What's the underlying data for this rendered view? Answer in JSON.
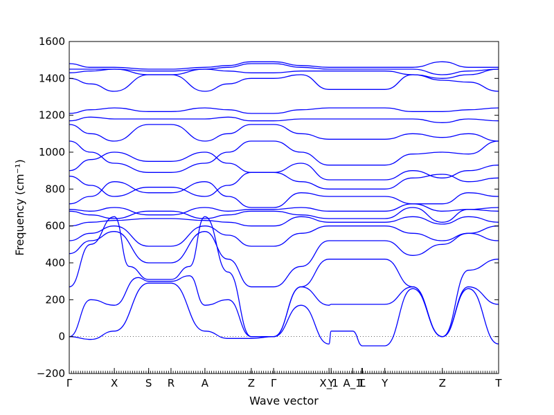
{
  "chart_data": {
    "type": "line",
    "title": "",
    "xlabel": "Wave vector",
    "ylabel": "Frequency (cm⁻¹)",
    "ylim": [
      -200,
      1600
    ],
    "yticks": [
      -200,
      0,
      200,
      400,
      600,
      800,
      1000,
      1200,
      1400,
      1600
    ],
    "xlim": [
      0,
      1
    ],
    "grid": false,
    "legend": "none",
    "series_color": "#0000ff",
    "zero_line": true,
    "kpoints": [
      {
        "label": "Γ",
        "x": 0.0
      },
      {
        "label": "X",
        "x": 0.105
      },
      {
        "label": "S",
        "x": 0.185
      },
      {
        "label": "R",
        "x": 0.237
      },
      {
        "label": "A",
        "x": 0.316
      },
      {
        "label": "Z",
        "x": 0.424
      },
      {
        "label": "Γ",
        "x": 0.476
      },
      {
        "label": "X_1",
        "x": 0.605
      },
      {
        "label": "Y",
        "x": 0.61
      },
      {
        "label": "A_1",
        "x": 0.66
      },
      {
        "label": "T",
        "x": 0.681
      },
      {
        "label": "L",
        "x": 0.683
      },
      {
        "label": "Y",
        "x": 0.735
      },
      {
        "label": "Z",
        "x": 0.869
      },
      {
        "label": "T",
        "x": 1.0
      }
    ],
    "series": [
      {
        "x": [
          0,
          0.05,
          0.105,
          0.185,
          0.237,
          0.316,
          0.37,
          0.424,
          0.476,
          0.54,
          0.605,
          0.61,
          0.66,
          0.683,
          0.735,
          0.8,
          0.869,
          0.93,
          1.0
        ],
        "y": [
          0,
          -15,
          30,
          290,
          290,
          30,
          -10,
          -10,
          0,
          170,
          -40,
          30,
          30,
          -50,
          -50,
          260,
          0,
          260,
          -40
        ]
      },
      {
        "x": [
          0,
          0.05,
          0.105,
          0.16,
          0.185,
          0.237,
          0.28,
          0.316,
          0.37,
          0.424,
          0.476,
          0.54,
          0.605,
          0.61,
          0.66,
          0.683,
          0.735,
          0.8,
          0.869,
          0.93,
          1.0
        ],
        "y": [
          0,
          200,
          170,
          320,
          300,
          300,
          330,
          170,
          200,
          0,
          0,
          270,
          170,
          175,
          175,
          175,
          175,
          270,
          0,
          270,
          175
        ]
      },
      {
        "x": [
          0,
          0.05,
          0.105,
          0.14,
          0.185,
          0.237,
          0.28,
          0.316,
          0.37,
          0.424,
          0.476,
          0.54,
          0.605,
          0.61,
          0.66,
          0.683,
          0.735,
          0.8,
          0.869,
          0.93,
          1.0
        ],
        "y": [
          270,
          500,
          650,
          380,
          310,
          310,
          380,
          650,
          350,
          0,
          0,
          270,
          420,
          420,
          420,
          420,
          420,
          270,
          0,
          360,
          420
        ]
      },
      {
        "x": [
          0,
          0.05,
          0.105,
          0.185,
          0.237,
          0.316,
          0.37,
          0.424,
          0.476,
          0.54,
          0.605,
          0.61,
          0.66,
          0.683,
          0.735,
          0.8,
          0.869,
          0.93,
          1.0
        ],
        "y": [
          450,
          520,
          570,
          400,
          400,
          570,
          420,
          270,
          270,
          380,
          520,
          520,
          520,
          520,
          520,
          440,
          500,
          560,
          520
        ]
      },
      {
        "x": [
          0,
          0.05,
          0.105,
          0.185,
          0.237,
          0.316,
          0.37,
          0.424,
          0.476,
          0.54,
          0.605,
          0.61,
          0.66,
          0.683,
          0.735,
          0.8,
          0.869,
          0.93,
          1.0
        ],
        "y": [
          520,
          560,
          600,
          490,
          490,
          600,
          550,
          490,
          490,
          560,
          600,
          600,
          600,
          600,
          600,
          560,
          520,
          560,
          600
        ]
      },
      {
        "x": [
          0,
          0.05,
          0.105,
          0.185,
          0.237,
          0.316,
          0.37,
          0.424,
          0.476,
          0.54,
          0.605,
          0.61,
          0.66,
          0.683,
          0.735,
          0.8,
          0.869,
          0.93,
          1.0
        ],
        "y": [
          600,
          620,
          630,
          640,
          640,
          630,
          620,
          600,
          600,
          650,
          620,
          620,
          620,
          620,
          620,
          650,
          610,
          650,
          620
        ]
      },
      {
        "x": [
          0,
          0.05,
          0.105,
          0.185,
          0.237,
          0.316,
          0.37,
          0.424,
          0.476,
          0.54,
          0.605,
          0.61,
          0.66,
          0.683,
          0.735,
          0.8,
          0.869,
          0.93,
          1.0
        ],
        "y": [
          680,
          660,
          640,
          680,
          680,
          640,
          660,
          680,
          680,
          660,
          640,
          640,
          640,
          640,
          640,
          700,
          620,
          690,
          680
        ]
      },
      {
        "x": [
          0,
          0.05,
          0.105,
          0.185,
          0.237,
          0.316,
          0.37,
          0.424,
          0.476,
          0.54,
          0.605,
          0.61,
          0.66,
          0.683,
          0.735,
          0.8,
          0.869,
          0.93,
          1.0
        ],
        "y": [
          690,
          680,
          700,
          660,
          660,
          700,
          680,
          690,
          690,
          700,
          680,
          680,
          680,
          680,
          680,
          720,
          680,
          690,
          700
        ]
      },
      {
        "x": [
          0,
          0.05,
          0.105,
          0.185,
          0.237,
          0.316,
          0.37,
          0.424,
          0.476,
          0.54,
          0.605,
          0.61,
          0.66,
          0.683,
          0.735,
          0.8,
          0.869,
          0.93,
          1.0
        ],
        "y": [
          720,
          760,
          840,
          780,
          780,
          840,
          760,
          700,
          700,
          780,
          760,
          760,
          760,
          760,
          760,
          720,
          720,
          780,
          760
        ]
      },
      {
        "x": [
          0,
          0.05,
          0.105,
          0.185,
          0.237,
          0.316,
          0.37,
          0.424,
          0.476,
          0.54,
          0.605,
          0.61,
          0.66,
          0.683,
          0.735,
          0.8,
          0.869,
          0.93,
          1.0
        ],
        "y": [
          870,
          820,
          760,
          810,
          810,
          760,
          820,
          890,
          890,
          840,
          800,
          800,
          800,
          800,
          800,
          860,
          880,
          840,
          860
        ]
      },
      {
        "x": [
          0,
          0.05,
          0.105,
          0.185,
          0.237,
          0.316,
          0.37,
          0.424,
          0.476,
          0.54,
          0.605,
          0.61,
          0.66,
          0.683,
          0.735,
          0.8,
          0.869,
          0.93,
          1.0
        ],
        "y": [
          900,
          960,
          1000,
          950,
          950,
          1000,
          940,
          890,
          890,
          940,
          850,
          850,
          850,
          850,
          850,
          900,
          860,
          900,
          930
        ]
      },
      {
        "x": [
          0,
          0.05,
          0.105,
          0.185,
          0.237,
          0.316,
          0.37,
          0.424,
          0.476,
          0.54,
          0.605,
          0.61,
          0.66,
          0.683,
          0.735,
          0.8,
          0.869,
          0.93,
          1.0
        ],
        "y": [
          1060,
          1000,
          940,
          890,
          890,
          940,
          1000,
          1060,
          1060,
          1000,
          930,
          930,
          930,
          930,
          930,
          990,
          1000,
          990,
          1060
        ]
      },
      {
        "x": [
          0,
          0.05,
          0.105,
          0.185,
          0.237,
          0.316,
          0.37,
          0.424,
          0.476,
          0.54,
          0.605,
          0.61,
          0.66,
          0.683,
          0.735,
          0.8,
          0.869,
          0.93,
          1.0
        ],
        "y": [
          1150,
          1100,
          1060,
          1150,
          1150,
          1060,
          1100,
          1150,
          1150,
          1100,
          1070,
          1070,
          1070,
          1070,
          1070,
          1100,
          1080,
          1100,
          1060
        ]
      },
      {
        "x": [
          0,
          0.05,
          0.105,
          0.185,
          0.237,
          0.316,
          0.37,
          0.424,
          0.476,
          0.54,
          0.605,
          0.61,
          0.66,
          0.683,
          0.735,
          0.8,
          0.869,
          0.93,
          1.0
        ],
        "y": [
          1170,
          1190,
          1180,
          1180,
          1180,
          1180,
          1190,
          1170,
          1170,
          1180,
          1180,
          1180,
          1180,
          1180,
          1180,
          1180,
          1160,
          1180,
          1170
        ]
      },
      {
        "x": [
          0,
          0.05,
          0.105,
          0.185,
          0.237,
          0.316,
          0.37,
          0.424,
          0.476,
          0.54,
          0.605,
          0.61,
          0.66,
          0.683,
          0.735,
          0.8,
          0.869,
          0.93,
          1.0
        ],
        "y": [
          1210,
          1230,
          1240,
          1220,
          1220,
          1240,
          1230,
          1210,
          1210,
          1230,
          1240,
          1240,
          1240,
          1240,
          1240,
          1220,
          1220,
          1230,
          1240
        ]
      },
      {
        "x": [
          0,
          0.05,
          0.105,
          0.185,
          0.237,
          0.316,
          0.37,
          0.424,
          0.476,
          0.54,
          0.605,
          0.61,
          0.66,
          0.683,
          0.735,
          0.8,
          0.869,
          0.93,
          1.0
        ],
        "y": [
          1400,
          1370,
          1330,
          1420,
          1420,
          1330,
          1370,
          1400,
          1400,
          1420,
          1340,
          1340,
          1340,
          1340,
          1340,
          1420,
          1390,
          1380,
          1330
        ]
      },
      {
        "x": [
          0,
          0.05,
          0.105,
          0.185,
          0.237,
          0.316,
          0.37,
          0.424,
          0.476,
          0.54,
          0.605,
          0.61,
          0.66,
          0.683,
          0.735,
          0.8,
          0.869,
          0.93,
          1.0
        ],
        "y": [
          1430,
          1440,
          1450,
          1420,
          1420,
          1450,
          1440,
          1430,
          1430,
          1440,
          1440,
          1440,
          1440,
          1440,
          1440,
          1420,
          1400,
          1420,
          1450
        ]
      },
      {
        "x": [
          0,
          0.05,
          0.105,
          0.185,
          0.237,
          0.316,
          0.37,
          0.424,
          0.476,
          0.54,
          0.605,
          0.61,
          0.66,
          0.683,
          0.735,
          0.8,
          0.869,
          0.93,
          1.0
        ],
        "y": [
          1450,
          1450,
          1450,
          1440,
          1440,
          1450,
          1460,
          1480,
          1480,
          1460,
          1450,
          1450,
          1450,
          1450,
          1450,
          1450,
          1420,
          1440,
          1450
        ]
      },
      {
        "x": [
          0,
          0.05,
          0.105,
          0.185,
          0.237,
          0.316,
          0.37,
          0.424,
          0.476,
          0.54,
          0.605,
          0.61,
          0.66,
          0.683,
          0.735,
          0.8,
          0.869,
          0.93,
          1.0
        ],
        "y": [
          1480,
          1460,
          1460,
          1450,
          1450,
          1460,
          1470,
          1490,
          1490,
          1470,
          1460,
          1460,
          1460,
          1460,
          1460,
          1460,
          1490,
          1460,
          1460
        ]
      }
    ]
  }
}
